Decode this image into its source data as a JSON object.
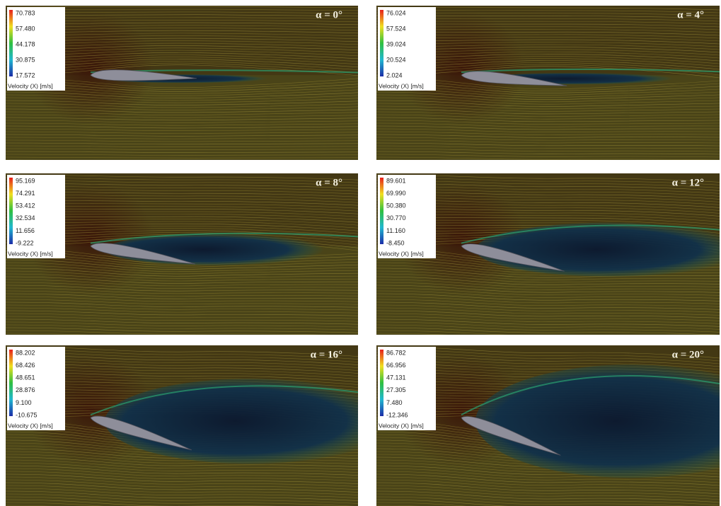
{
  "panels": [
    {
      "label": "α = 0°",
      "legend": {
        "ticks": [
          "70.783",
          "57.480",
          "44.178",
          "30.875",
          "17.572"
        ],
        "title": "Velocity (X) [m/s]"
      }
    },
    {
      "label": "α = 4°",
      "legend": {
        "ticks": [
          "76.024",
          "57.524",
          "39.024",
          "20.524",
          "2.024"
        ],
        "title": "Velocity (X) [m/s]"
      }
    },
    {
      "label": "α = 8°",
      "legend": {
        "ticks": [
          "95.169",
          "74.291",
          "53.412",
          "32.534",
          "11.656",
          "-9.222"
        ],
        "title": "Velocity (X) [m/s]"
      }
    },
    {
      "label": "α = 12°",
      "legend": {
        "ticks": [
          "89.601",
          "69.990",
          "50.380",
          "30.770",
          "11.160",
          "-8.450"
        ],
        "title": "Velocity (X) [m/s]"
      }
    },
    {
      "label": "α = 16°",
      "legend": {
        "ticks": [
          "88.202",
          "68.426",
          "48.651",
          "28.876",
          "9.100",
          "-10.675"
        ],
        "title": "Velocity (X) [m/s]"
      }
    },
    {
      "label": "α = 20°",
      "legend": {
        "ticks": [
          "86.782",
          "66.956",
          "47.131",
          "27.305",
          "7.480",
          "-12.346"
        ],
        "title": "Velocity (X) [m/s]"
      }
    }
  ]
}
